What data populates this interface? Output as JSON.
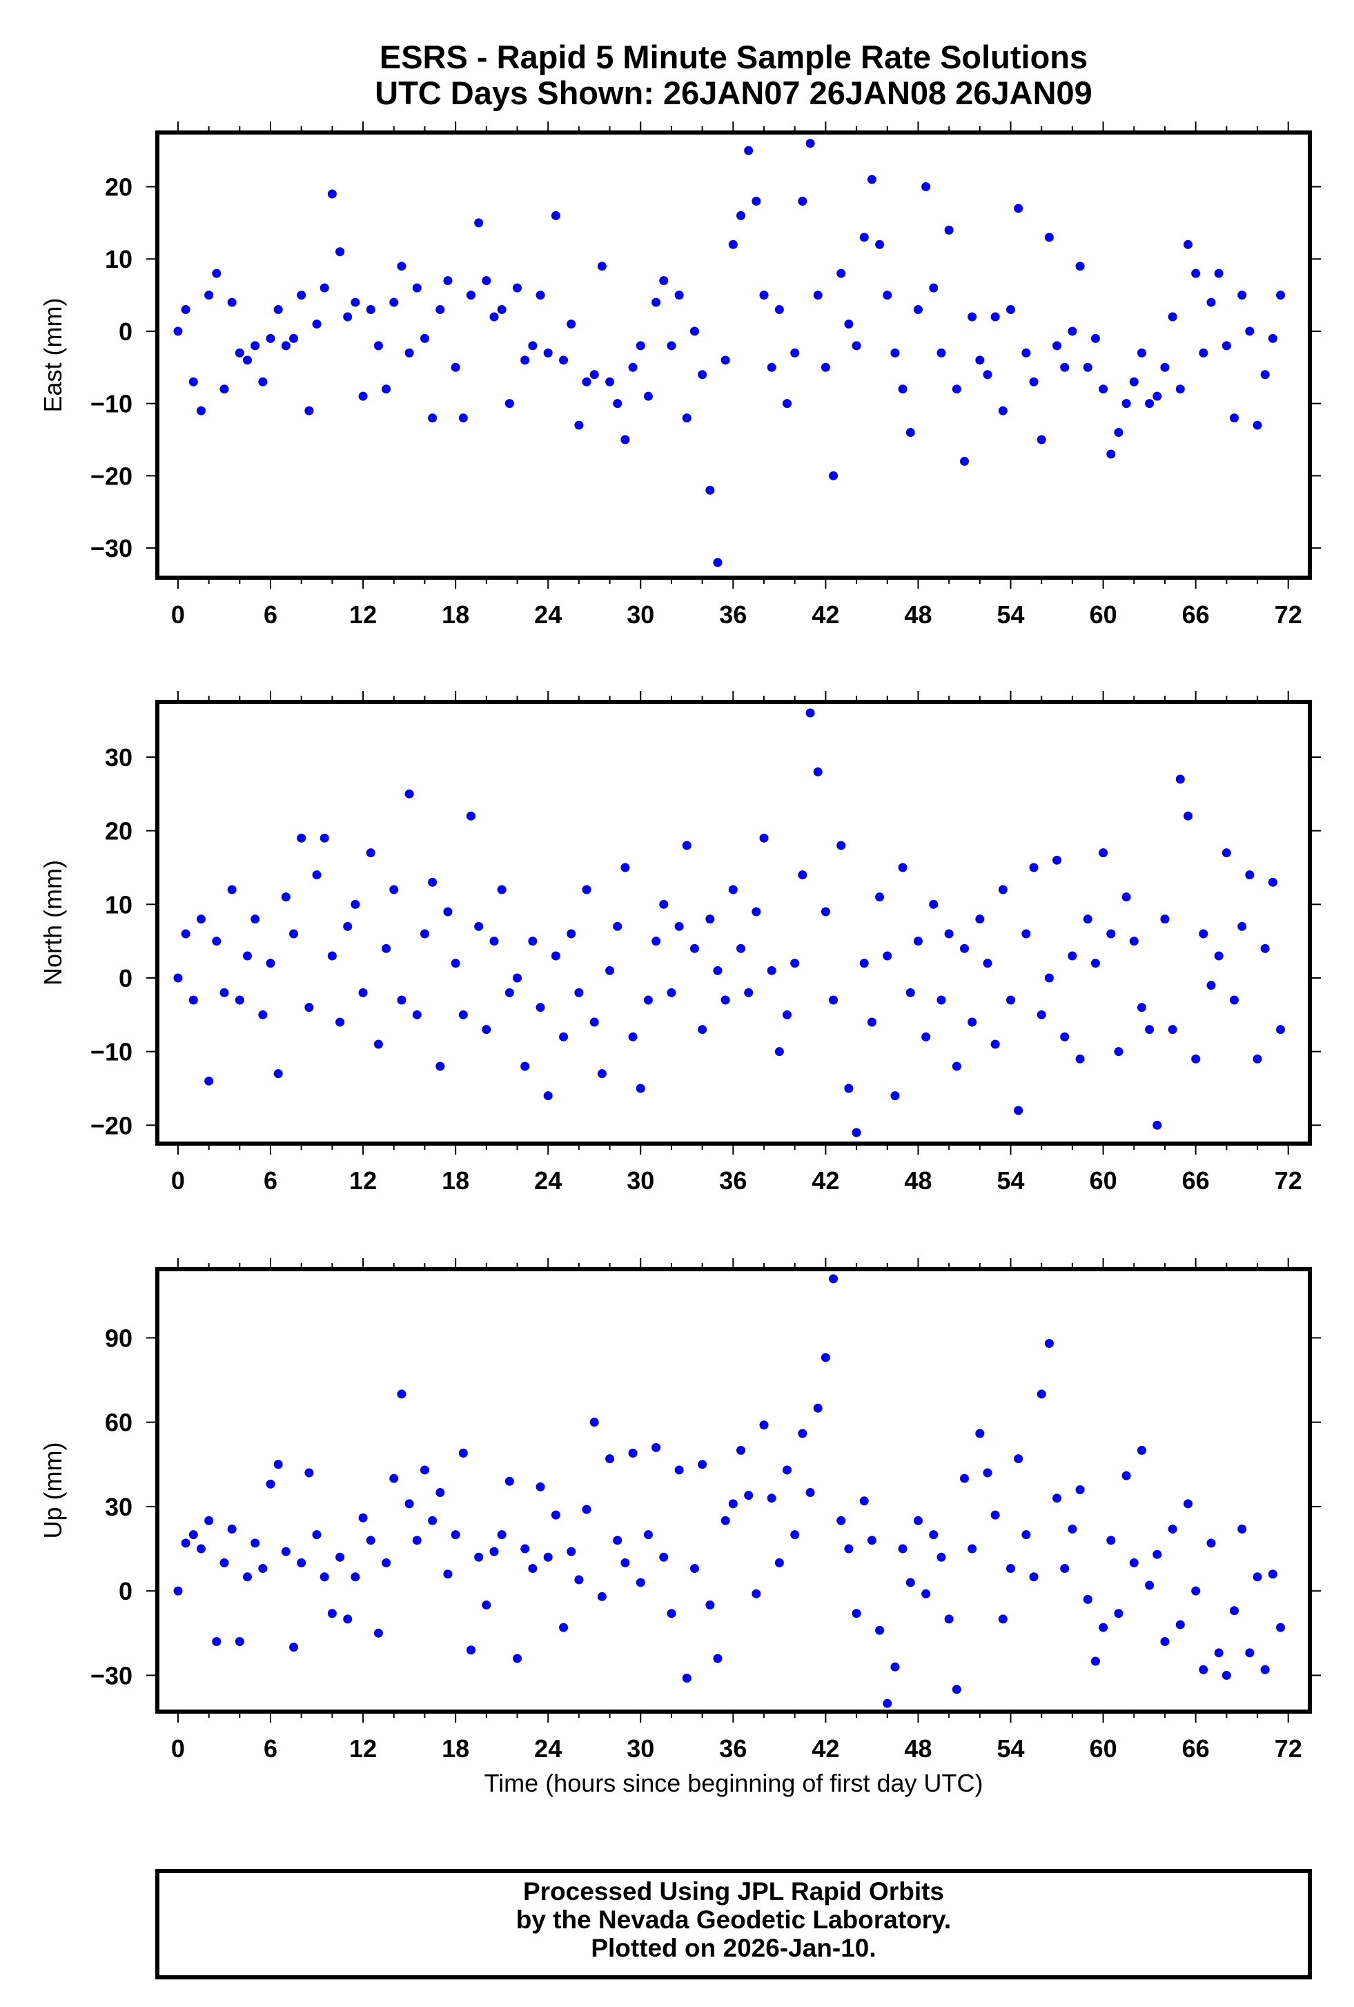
{
  "chart_data": {
    "type": "scatter",
    "title": "ESRS - Rapid 5 Minute Sample Rate Solutions",
    "subtitle": "UTC Days Shown:  26JAN07 26JAN08 26JAN09",
    "xlabel": "Time (hours since beginning of first day UTC)",
    "xlim": [
      -1.34,
      73.4
    ],
    "xticks": [
      "0",
      "6",
      "12",
      "18",
      "24",
      "30",
      "36",
      "42",
      "48",
      "54",
      "60",
      "66",
      "72"
    ],
    "x_step": 0.5,
    "marker_color": "#0000ff",
    "panels": [
      {
        "ylabel": "East (mm)",
        "ylim": [
          -34.1,
          27.5
        ],
        "yticks": [
          "20",
          "10",
          "0",
          "-10",
          "-20",
          "-30"
        ],
        "values": [
          0,
          3,
          -7,
          -11,
          5,
          8,
          -8,
          4,
          -3,
          -4,
          -2,
          -7,
          -1,
          3,
          -2,
          -1,
          5,
          -11,
          1,
          6,
          19,
          11,
          2,
          4,
          -9,
          3,
          -2,
          -8,
          4,
          9,
          -3,
          6,
          -1,
          -12,
          3,
          7,
          -5,
          -12,
          5,
          15,
          7,
          2,
          3,
          -10,
          6,
          -4,
          -2,
          5,
          -3,
          16,
          -4,
          1,
          -13,
          -7,
          -6,
          9,
          -7,
          -10,
          -15,
          -5,
          -2,
          -9,
          4,
          7,
          -2,
          5,
          -12,
          0,
          -6,
          -22,
          -32,
          -4,
          12,
          16,
          25,
          18,
          5,
          -5,
          3,
          -10,
          -3,
          18,
          26,
          5,
          -5,
          -20,
          8,
          1,
          -2,
          13,
          21,
          12,
          5,
          -3,
          -8,
          -14,
          3,
          20,
          6,
          -3,
          14,
          -8,
          -18,
          2,
          -4,
          -6,
          2,
          -11,
          3,
          17,
          -3,
          -7,
          -15,
          13,
          -2,
          -5,
          0,
          9,
          -5,
          -1,
          -8,
          -17,
          -14,
          -10,
          -7,
          -3,
          -10,
          -9,
          -5,
          2,
          -8,
          12,
          8,
          -3,
          4,
          8,
          -2,
          -12,
          5,
          0,
          -13,
          -6,
          -1,
          5
        ]
      },
      {
        "ylabel": "North (mm)",
        "ylim": [
          -22.5,
          37.5
        ],
        "yticks": [
          "30",
          "20",
          "10",
          "0",
          "-10",
          "-20"
        ],
        "values": [
          0,
          6,
          -3,
          8,
          -14,
          5,
          -2,
          12,
          -3,
          3,
          8,
          -5,
          2,
          -13,
          11,
          6,
          19,
          -4,
          14,
          19,
          3,
          -6,
          7,
          10,
          -2,
          17,
          -9,
          4,
          12,
          -3,
          25,
          -5,
          6,
          13,
          -12,
          9,
          2,
          -5,
          22,
          7,
          -7,
          5,
          12,
          -2,
          0,
          -12,
          5,
          -4,
          -16,
          3,
          -8,
          6,
          -2,
          12,
          -6,
          -13,
          1,
          7,
          15,
          -8,
          -15,
          -3,
          5,
          10,
          -2,
          7,
          18,
          4,
          -7,
          8,
          1,
          -3,
          12,
          4,
          -2,
          9,
          19,
          1,
          -10,
          -5,
          2,
          14,
          36,
          28,
          9,
          -3,
          18,
          -15,
          -21,
          2,
          -6,
          11,
          3,
          -16,
          15,
          -2,
          5,
          -8,
          10,
          -3,
          6,
          -12,
          4,
          -6,
          8,
          2,
          -9,
          12,
          -3,
          -18,
          6,
          15,
          -5,
          0,
          16,
          -8,
          3,
          -11,
          8,
          2,
          17,
          6,
          -10,
          11,
          5,
          -4,
          -7,
          -20,
          8,
          -7,
          27,
          22,
          -11,
          6,
          -1,
          3,
          17,
          -3,
          7,
          14,
          -11,
          4,
          13,
          -7
        ]
      },
      {
        "ylabel": "Up (mm)",
        "ylim": [
          -42.9,
          114.4
        ],
        "yticks": [
          "90",
          "60",
          "30",
          "0",
          "-30"
        ],
        "values": [
          0,
          17,
          20,
          15,
          25,
          -18,
          10,
          22,
          -18,
          5,
          17,
          8,
          38,
          45,
          14,
          -20,
          10,
          42,
          20,
          5,
          -8,
          12,
          -10,
          5,
          26,
          18,
          -15,
          10,
          40,
          70,
          31,
          18,
          43,
          25,
          35,
          6,
          20,
          49,
          -21,
          12,
          -5,
          14,
          20,
          39,
          -24,
          15,
          8,
          37,
          12,
          27,
          -13,
          14,
          4,
          29,
          60,
          -2,
          47,
          18,
          10,
          49,
          3,
          20,
          51,
          12,
          -8,
          43,
          -31,
          8,
          45,
          -5,
          -24,
          25,
          31,
          50,
          34,
          -1,
          59,
          33,
          10,
          43,
          20,
          56,
          35,
          65,
          83,
          111,
          25,
          15,
          -8,
          32,
          18,
          -14,
          -40,
          -27,
          15,
          3,
          25,
          -1,
          20,
          12,
          -10,
          -35,
          40,
          15,
          56,
          42,
          27,
          -10,
          8,
          47,
          20,
          5,
          70,
          88,
          33,
          8,
          22,
          36,
          -3,
          -25,
          -13,
          18,
          -8,
          41,
          10,
          50,
          2,
          13,
          -18,
          22,
          -12,
          31,
          0,
          -28,
          17,
          -22,
          -30,
          -7,
          22,
          -22,
          5,
          -28,
          6,
          -13
        ]
      }
    ]
  },
  "footer": {
    "line1": "Processed Using JPL Rapid Orbits",
    "line2": "by the Nevada Geodetic Laboratory.",
    "line3": "Plotted on 2026-Jan-10."
  }
}
